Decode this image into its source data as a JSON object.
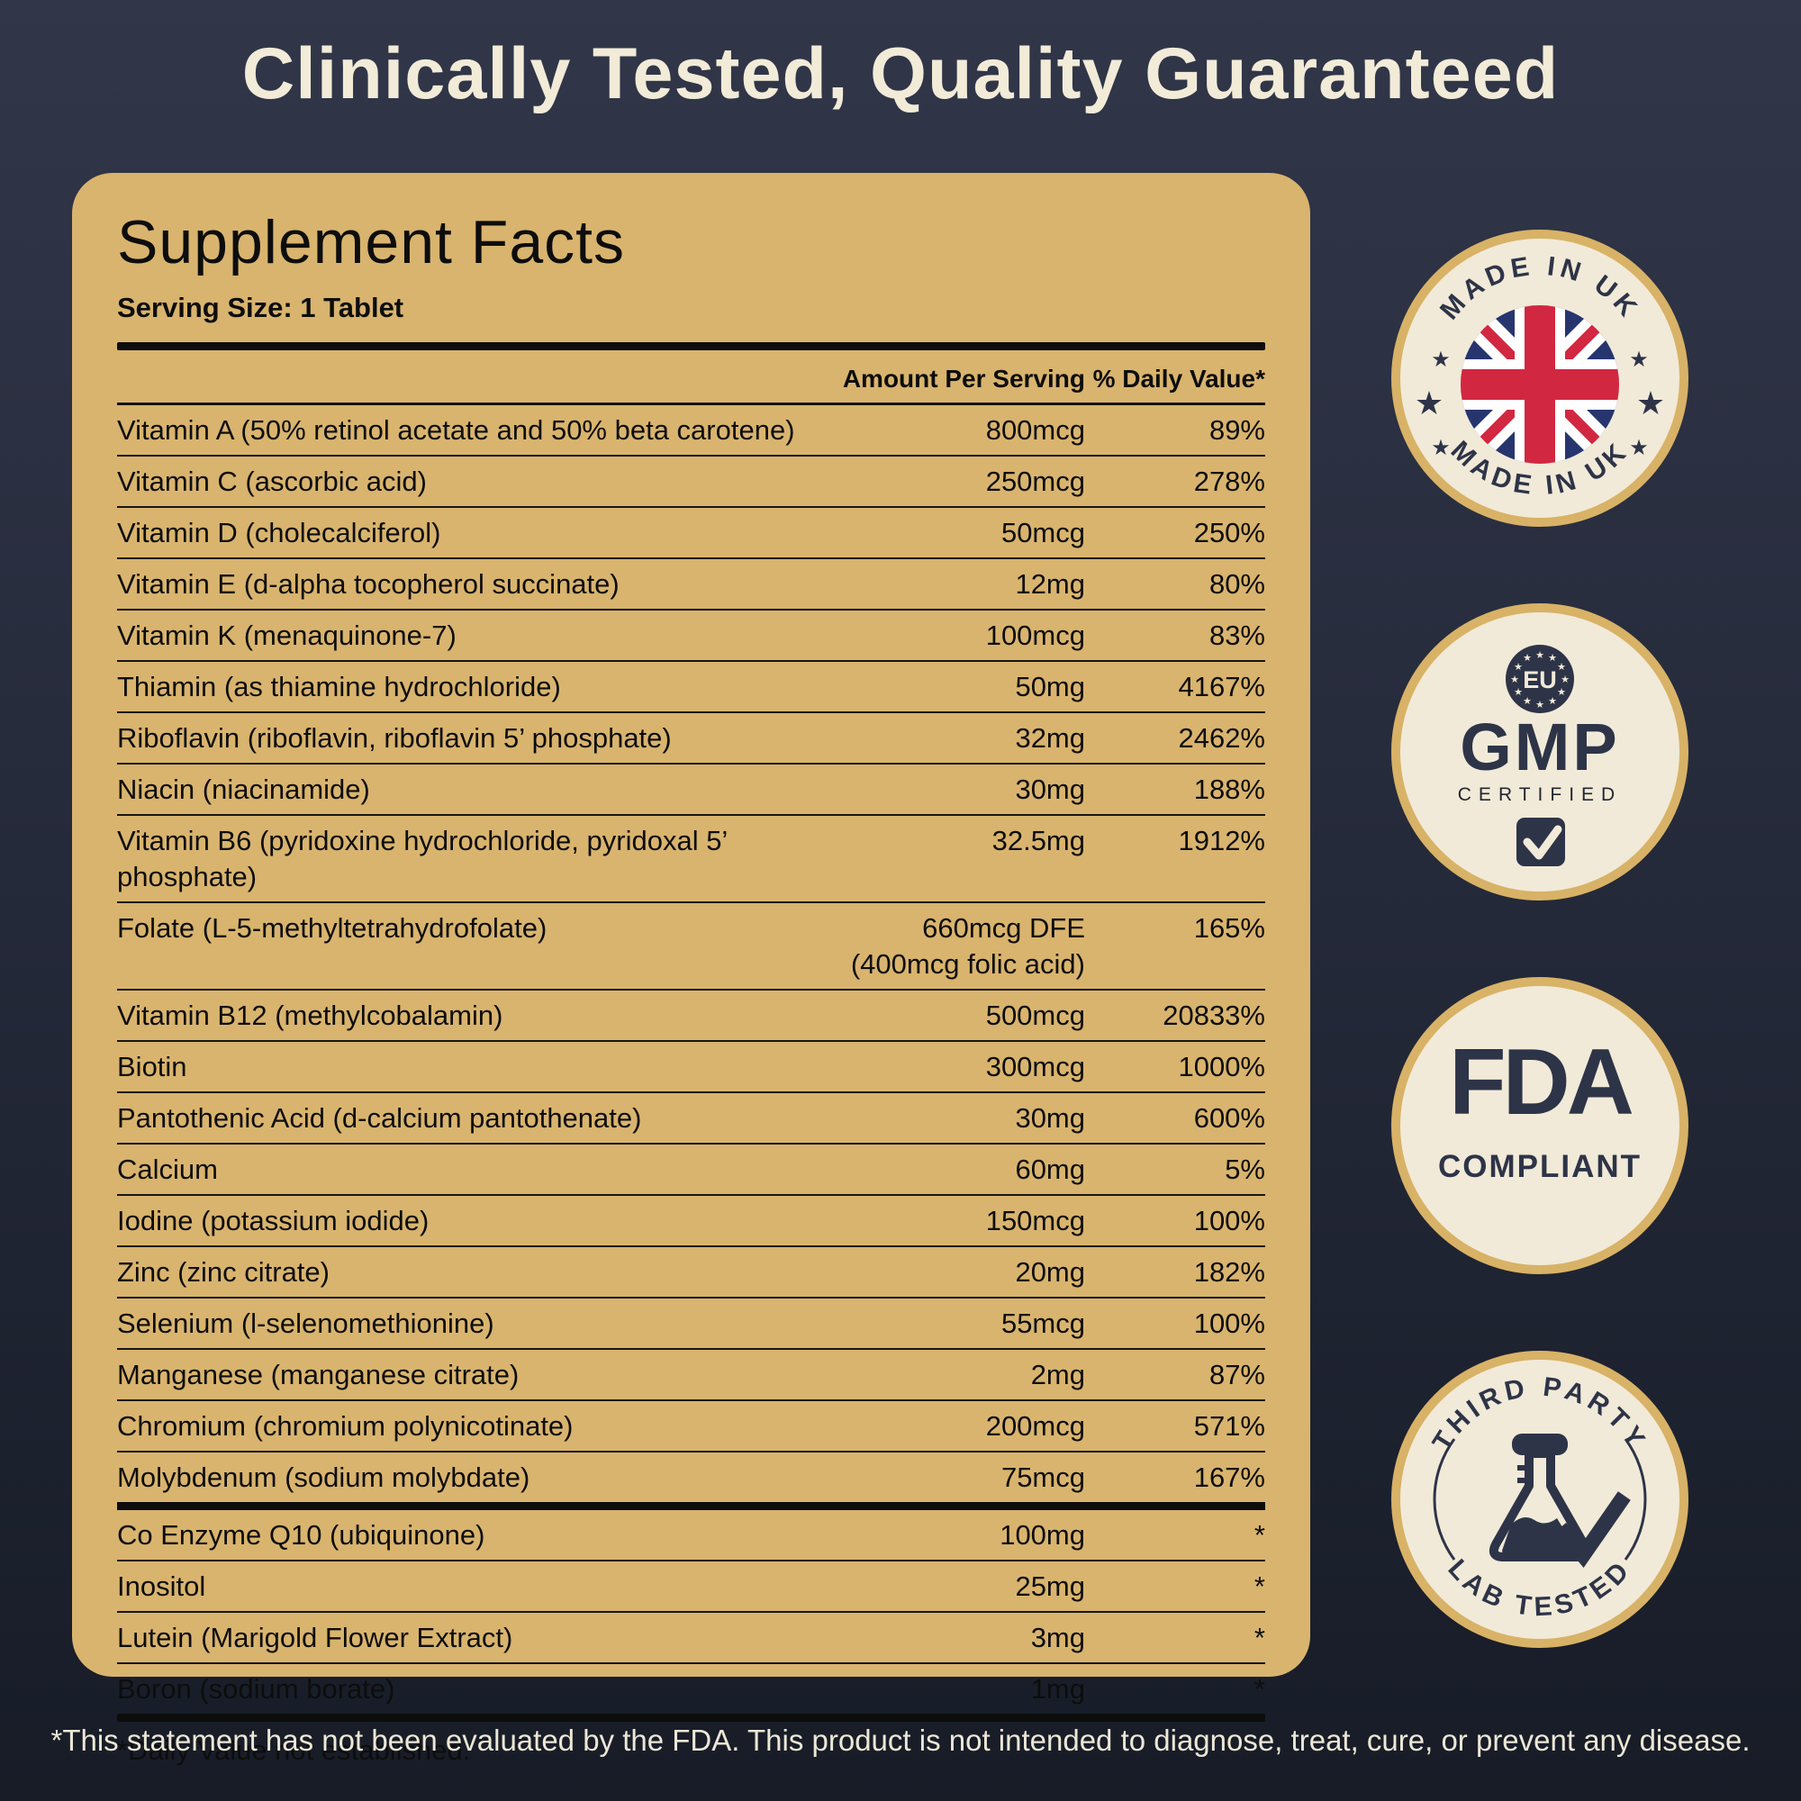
{
  "title": "Clinically Tested, Quality Guaranteed",
  "panel": {
    "heading": "Supplement Facts",
    "serving_size": "Serving Size: 1 Tablet",
    "footnote": "*Daily Value not established."
  },
  "table": {
    "headers": {
      "amount": "Amount Per Serving",
      "dv": "% Daily Value*"
    },
    "rows": [
      {
        "name": "Vitamin A (50% retinol acetate and 50% beta carotene)",
        "amount": "800mcg",
        "dv": "89%"
      },
      {
        "name": "Vitamin C (ascorbic acid)",
        "amount": "250mcg",
        "dv": "278%"
      },
      {
        "name": "Vitamin D (cholecalciferol)",
        "amount": "50mcg",
        "dv": "250%"
      },
      {
        "name": "Vitamin E (d-alpha tocopherol succinate)",
        "amount": "12mg",
        "dv": "80%"
      },
      {
        "name": "Vitamin K (menaquinone-7)",
        "amount": "100mcg",
        "dv": "83%"
      },
      {
        "name": "Thiamin (as thiamine hydrochloride)",
        "amount": "50mg",
        "dv": "4167%"
      },
      {
        "name": "Riboflavin (riboflavin, riboflavin 5’ phosphate)",
        "amount": "32mg",
        "dv": "2462%"
      },
      {
        "name": "Niacin (niacinamide)",
        "amount": "30mg",
        "dv": "188%"
      },
      {
        "name": "Vitamin B6 (pyridoxine hydrochloride, pyridoxal 5’ phosphate)",
        "amount": "32.5mg",
        "dv": "1912%"
      },
      {
        "name": "Folate (L-5-methyltetrahydrofolate)",
        "amount": "660mcg DFE",
        "amount2": "(400mcg folic acid)",
        "dv": "165%"
      },
      {
        "name": "Vitamin B12 (methylcobalamin)",
        "amount": "500mcg",
        "dv": "20833%"
      },
      {
        "name": "Biotin",
        "amount": "300mcg",
        "dv": "1000%"
      },
      {
        "name": "Pantothenic Acid (d-calcium pantothenate)",
        "amount": "30mg",
        "dv": "600%"
      },
      {
        "name": "Calcium",
        "amount": "60mg",
        "dv": "5%"
      },
      {
        "name": "Iodine (potassium iodide)",
        "amount": "150mcg",
        "dv": "100%"
      },
      {
        "name": "Zinc (zinc citrate)",
        "amount": "20mg",
        "dv": "182%"
      },
      {
        "name": "Selenium (l-selenomethionine)",
        "amount": "55mcg",
        "dv": "100%"
      },
      {
        "name": "Manganese (manganese citrate)",
        "amount": "2mg",
        "dv": "87%"
      },
      {
        "name": "Chromium (chromium polynicotinate)",
        "amount": "200mcg",
        "dv": "571%"
      },
      {
        "name": "Molybdenum (sodium molybdate)",
        "amount": "75mcg",
        "dv": "167%"
      },
      {
        "name": "Co Enzyme Q10 (ubiquinone)",
        "amount": "100mg",
        "dv": "*",
        "section_break": true
      },
      {
        "name": "Inositol",
        "amount": "25mg",
        "dv": "*"
      },
      {
        "name": "Lutein (Marigold Flower Extract)",
        "amount": "3mg",
        "dv": "*"
      },
      {
        "name": "Boron (sodium borate)",
        "amount": "1mg",
        "dv": "*"
      }
    ]
  },
  "badges": {
    "made_in_uk": {
      "arc_top": "MADE IN UK",
      "arc_bottom": "MADE IN UK"
    },
    "gmp": {
      "eu_label": "EU",
      "title": "GMP",
      "subtitle": "CERTIFIED"
    },
    "fda": {
      "title": "FDA",
      "subtitle": "COMPLIANT"
    },
    "third_party": {
      "arc_top": "THIRD PARTY",
      "arc_bottom": "LAB TESTED"
    }
  },
  "disclaimer": "*This statement has not been evaluated by the FDA. This product is not intended to diagnose, treat, cure, or prevent any disease.",
  "colors": {
    "background_navy": "#272c3d",
    "panel_tan": "#d9b46e",
    "badge_cream": "#f1ead8",
    "badge_gold": "#d8b266",
    "badge_navy": "#2e3448",
    "uk_flag_blue": "#27356f",
    "uk_flag_red": "#d22740",
    "text_black": "#0d0d0d",
    "title_cream": "#f1ebd8"
  }
}
